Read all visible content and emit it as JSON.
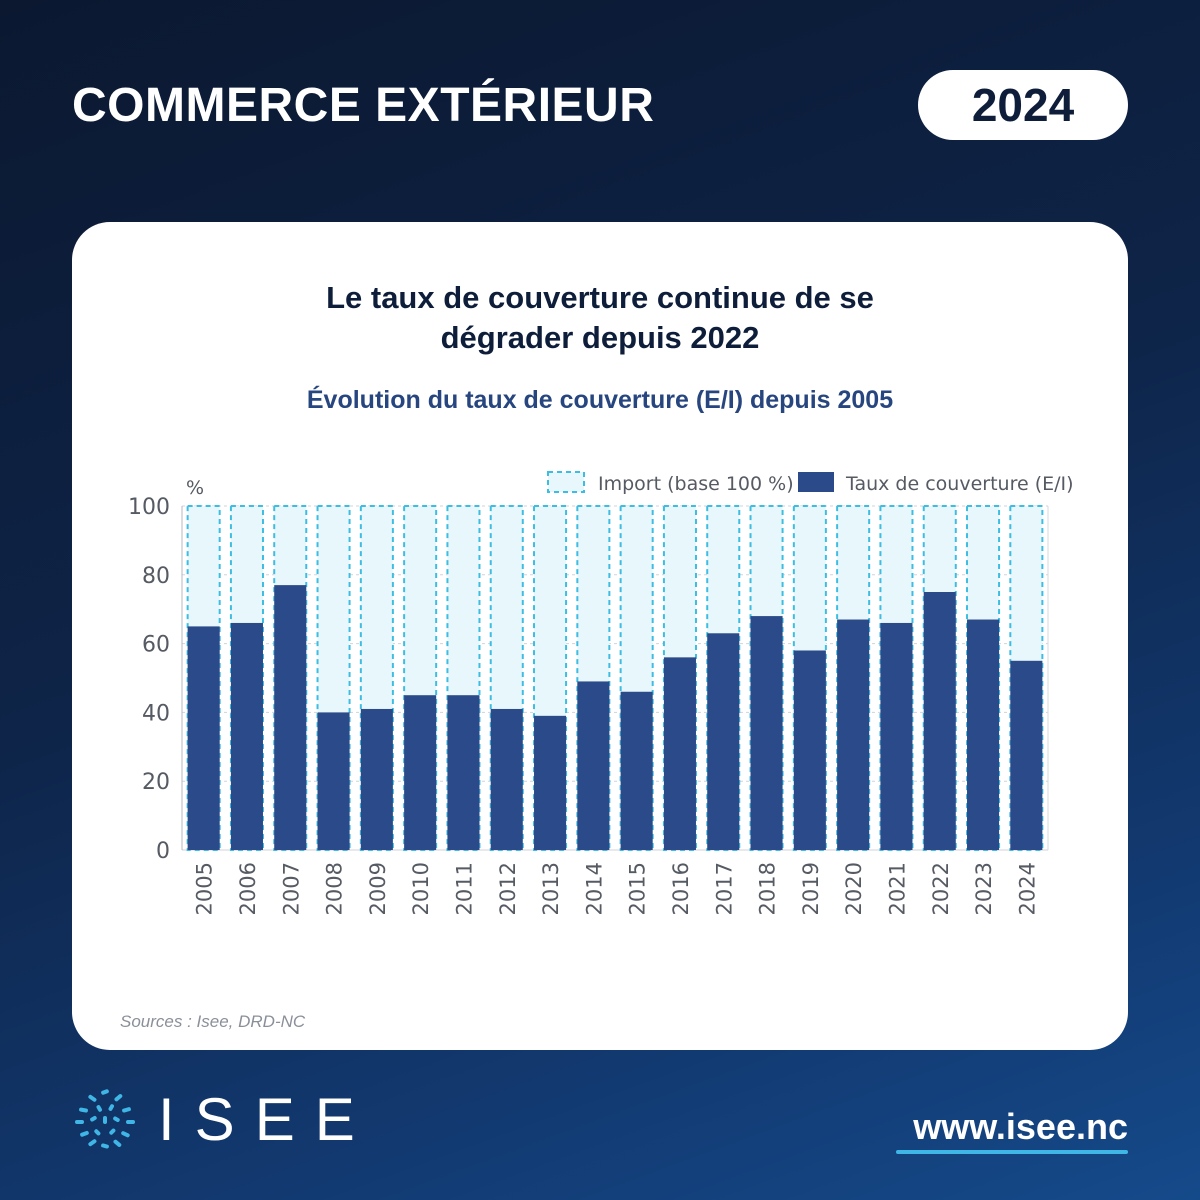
{
  "header": {
    "title": "COMMERCE EXTÉRIEUR",
    "year": "2024"
  },
  "card": {
    "title_line1": "Le taux de couverture continue de se",
    "title_line2": "dégrader depuis 2022",
    "subtitle": "Évolution du taux de couverture (E/I) depuis 2005",
    "sources": "Sources : Isee, DRD-NC"
  },
  "footer": {
    "logo_text": "ISEE",
    "website": "www.isee.nc"
  },
  "colors": {
    "bar": "#2b4a8a",
    "import_fill": "#e8f7fb",
    "import_border": "#3dbde2",
    "grid": "#cfd3d8",
    "axis_text": "#555a63"
  },
  "chart_data": {
    "type": "bar",
    "title": "Évolution du taux de couverture (E/I) depuis 2005",
    "ylabel": "%",
    "ylim": [
      0,
      100
    ],
    "yticks": [
      0,
      20,
      40,
      60,
      80,
      100
    ],
    "grid": true,
    "legend_position": "top-right",
    "categories": [
      "2005",
      "2006",
      "2007",
      "2008",
      "2009",
      "2010",
      "2011",
      "2012",
      "2013",
      "2014",
      "2015",
      "2016",
      "2017",
      "2018",
      "2019",
      "2020",
      "2021",
      "2022",
      "2023",
      "2024"
    ],
    "series": [
      {
        "name": "Import (base 100 %)",
        "values": [
          100,
          100,
          100,
          100,
          100,
          100,
          100,
          100,
          100,
          100,
          100,
          100,
          100,
          100,
          100,
          100,
          100,
          100,
          100,
          100
        ]
      },
      {
        "name": "Taux de couverture (E/I)",
        "values": [
          65,
          66,
          77,
          40,
          41,
          45,
          45,
          41,
          39,
          49,
          46,
          56,
          63,
          68,
          58,
          67,
          66,
          75,
          67,
          55
        ]
      }
    ]
  }
}
